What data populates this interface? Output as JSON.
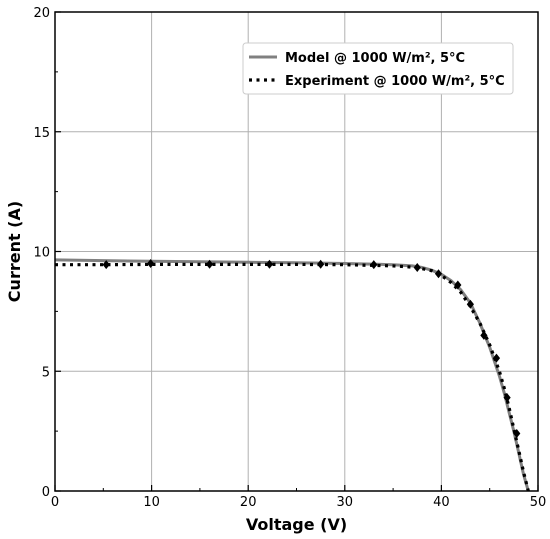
{
  "chart_data": {
    "type": "line",
    "xlabel": "Voltage (V)",
    "ylabel": "Current (A)",
    "xlim": [
      0,
      50
    ],
    "ylim": [
      0,
      20
    ],
    "xticks": [
      0,
      10,
      20,
      30,
      40,
      50
    ],
    "yticks": [
      0,
      5,
      10,
      15,
      20
    ],
    "grid": true,
    "legend_position": "top-right",
    "series": [
      {
        "name": "Model @ 1000 W/m², 5°C",
        "style": "solid",
        "color": "#808080",
        "x": [
          0,
          5,
          10,
          15,
          20,
          25,
          30,
          35,
          37,
          38,
          39,
          40,
          41,
          42,
          43,
          44,
          45,
          46,
          46.5,
          47,
          47.5,
          48,
          48.5,
          49
        ],
        "y": [
          9.65,
          9.62,
          9.59,
          9.57,
          9.55,
          9.53,
          9.5,
          9.45,
          9.4,
          9.33,
          9.22,
          9.05,
          8.78,
          8.4,
          7.85,
          7.0,
          6.0,
          4.8,
          4.1,
          3.3,
          2.5,
          1.6,
          0.7,
          0.0
        ]
      },
      {
        "name": "Experiment @ 1000 W/m², 5°C",
        "style": "dotted",
        "color": "#000000",
        "x": [
          0,
          5,
          10,
          15,
          20,
          25,
          30,
          35,
          37,
          38,
          39,
          40,
          41,
          42,
          43,
          44,
          45,
          46,
          46.5,
          47,
          47.5,
          48,
          48.5,
          49
        ],
        "y": [
          9.45,
          9.45,
          9.46,
          9.46,
          9.46,
          9.46,
          9.45,
          9.4,
          9.35,
          9.28,
          9.2,
          9.0,
          8.7,
          8.3,
          7.7,
          7.0,
          6.1,
          5.0,
          4.3,
          3.5,
          2.6,
          1.7,
          0.8,
          0.0
        ]
      }
    ],
    "markers": {
      "shape": "diamond",
      "color": "#000000",
      "x": [
        5.3,
        9.9,
        16.0,
        22.2,
        27.5,
        33.0,
        37.5,
        39.7,
        41.7,
        43.0,
        44.4,
        45.7,
        46.8,
        47.8
      ],
      "y": [
        9.45,
        9.5,
        9.47,
        9.47,
        9.47,
        9.45,
        9.33,
        9.07,
        8.6,
        7.8,
        6.5,
        5.55,
        3.9,
        2.4
      ]
    }
  }
}
